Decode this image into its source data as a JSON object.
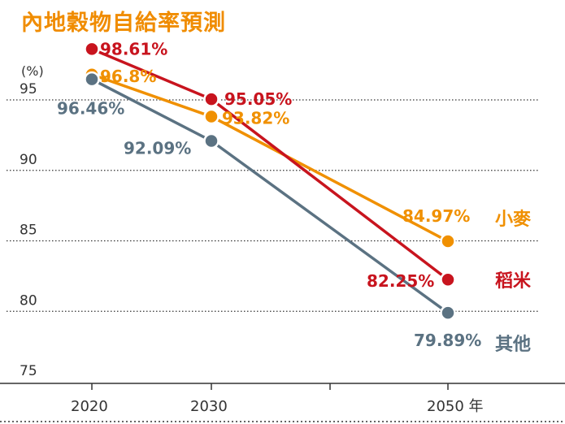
{
  "chart_data": {
    "type": "line",
    "title": "內地穀物自給率預測",
    "ylabel": "(%)",
    "x": [
      2020,
      2030,
      2050
    ],
    "x_tick_labels": [
      "2020",
      "2030",
      "2050 年"
    ],
    "ylim": [
      75,
      100
    ],
    "y_ticks": [
      75,
      80,
      85,
      90,
      95
    ],
    "y_tick_labels": [
      "75",
      "80",
      "85",
      "90",
      "95"
    ],
    "grid": "dotted horizontal",
    "legend": "end-of-line labels (right)",
    "series": [
      {
        "name": "小麥",
        "color": "#f09000",
        "values": [
          96.8,
          93.82,
          84.97
        ],
        "labels": [
          "96.8%",
          "93.82%",
          "84.97%"
        ]
      },
      {
        "name": "稻米",
        "color": "#c8141e",
        "values": [
          98.61,
          95.05,
          82.25
        ],
        "labels": [
          "98.61%",
          "95.05%",
          "82.25%"
        ]
      },
      {
        "name": "其他",
        "color": "#5b7282",
        "values": [
          96.46,
          92.09,
          79.89
        ],
        "labels": [
          "96.46%",
          "92.09%",
          "79.89%"
        ]
      }
    ]
  }
}
